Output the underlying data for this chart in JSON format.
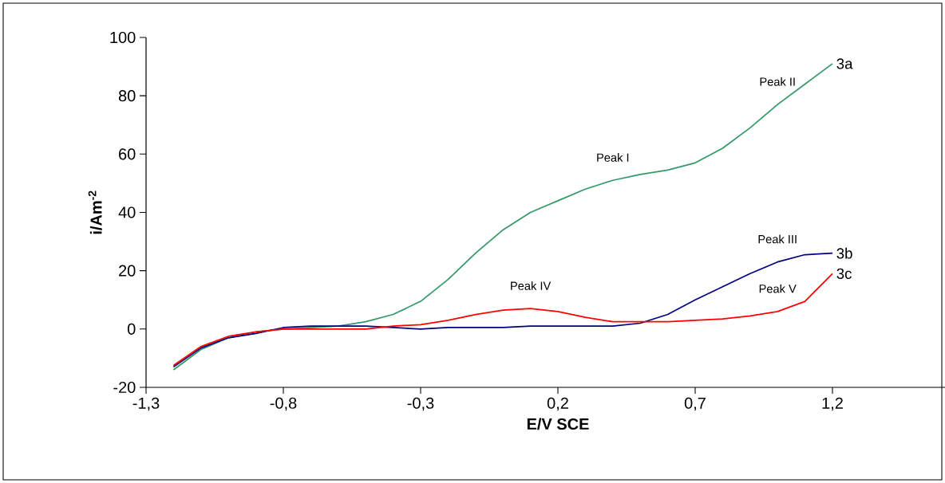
{
  "chart_data": {
    "type": "line",
    "xlabel": "E/V SCE",
    "ylabel": "i/Am$^{-2}$",
    "x": [
      -1.2,
      -1.1,
      -1.0,
      -0.9,
      -0.8,
      -0.7,
      -0.6,
      -0.5,
      -0.4,
      -0.3,
      -0.2,
      -0.1,
      0.0,
      0.1,
      0.2,
      0.3,
      0.4,
      0.5,
      0.6,
      0.7,
      0.8,
      0.9,
      1.0,
      1.1,
      1.2
    ],
    "series": [
      {
        "name": "3a",
        "color": "#339966",
        "values": [
          -14,
          -7,
          -3,
          -1,
          0,
          0.5,
          1,
          2.5,
          5,
          9.5,
          17,
          26,
          34,
          40,
          44,
          48,
          51,
          53,
          54.5,
          57,
          62,
          69,
          77,
          84,
          91
        ]
      },
      {
        "name": "3b",
        "color": "#000080",
        "values": [
          -13,
          -6.5,
          -3,
          -1.5,
          0.5,
          1,
          1,
          1,
          0.5,
          0,
          0.5,
          0.5,
          0.5,
          1,
          1,
          1,
          1,
          2,
          5,
          10,
          14.5,
          19,
          23,
          25.5,
          26
        ]
      },
      {
        "name": "3c",
        "color": "#ff0000",
        "values": [
          -12.5,
          -6,
          -2.5,
          -1,
          0,
          0,
          0,
          0,
          1,
          1.5,
          3,
          5,
          6.5,
          7,
          6,
          4,
          2.5,
          2.5,
          2.5,
          3,
          3.5,
          4.5,
          6,
          9.5,
          19
        ]
      }
    ],
    "xlim": [
      -1.3,
      1.7
    ],
    "ylim": [
      -20,
      100
    ],
    "xticks": [
      {
        "value": -1.3,
        "label": "-1,3"
      },
      {
        "value": -0.8,
        "label": "-0,8"
      },
      {
        "value": -0.3,
        "label": "-0,3"
      },
      {
        "value": 0.2,
        "label": "0,2"
      },
      {
        "value": 0.7,
        "label": "0,7"
      },
      {
        "value": 1.2,
        "label": "1,2"
      }
    ],
    "yticks": [
      -20,
      0,
      20,
      40,
      60,
      80,
      100
    ],
    "annotations": [
      {
        "text": "Peak I",
        "x": 0.4,
        "y": 51
      },
      {
        "text": "Peak II",
        "x": 1.0,
        "y": 77
      },
      {
        "text": "Peak III",
        "x": 1.0,
        "y": 23
      },
      {
        "text": "Peak IV",
        "x": 0.1,
        "y": 7
      },
      {
        "text": "Peak V",
        "x": 1.0,
        "y": 6
      }
    ]
  }
}
